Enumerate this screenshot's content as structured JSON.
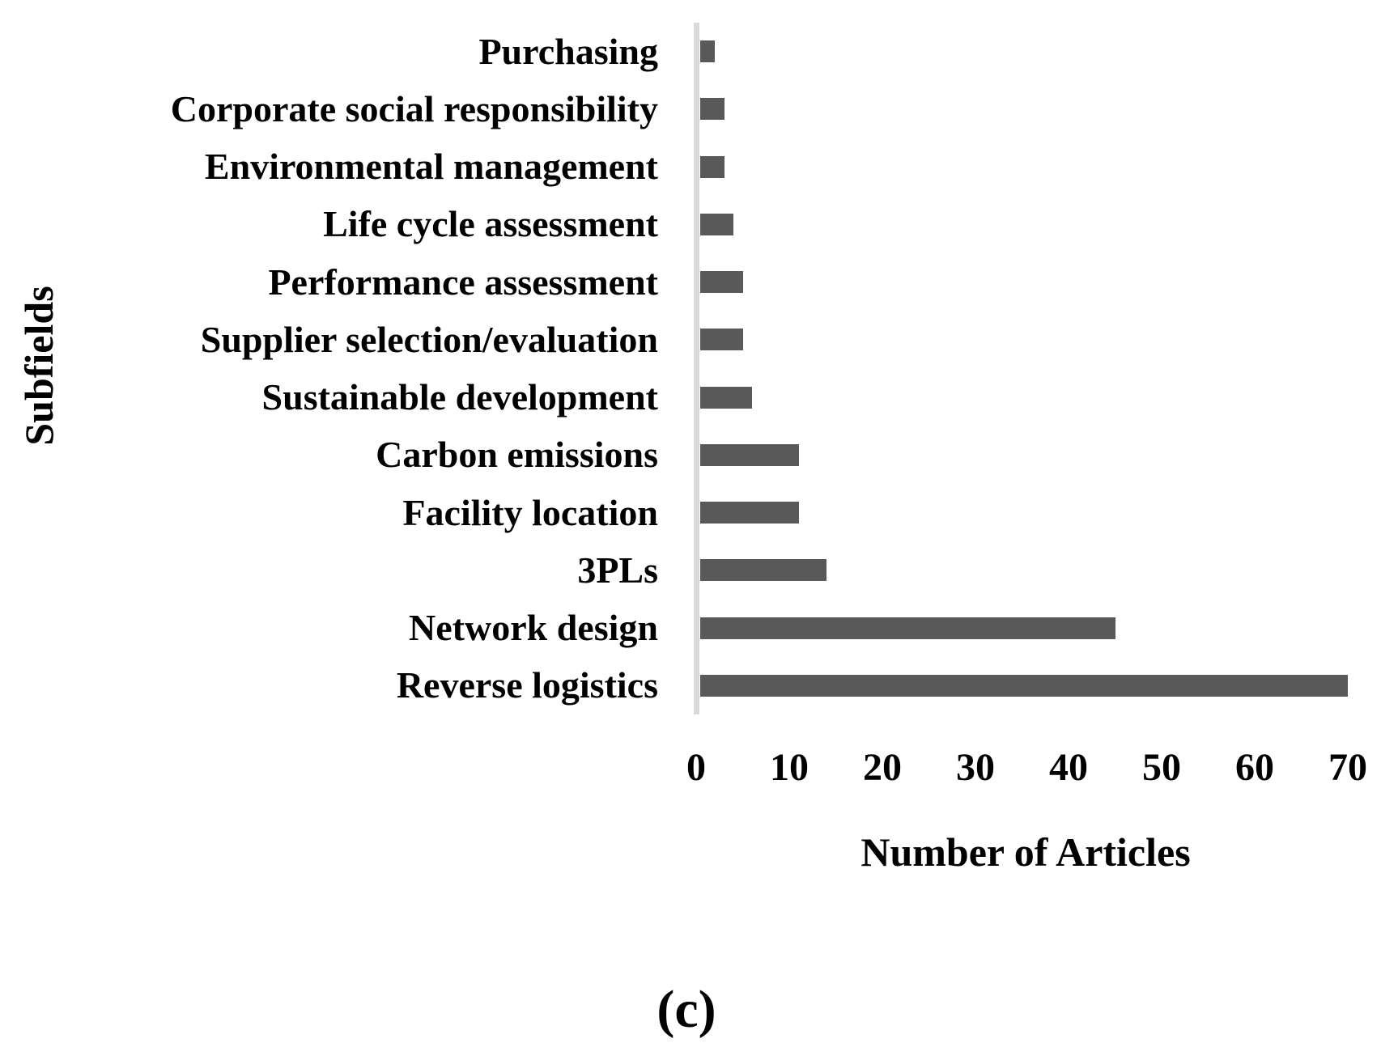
{
  "figure": {
    "caption": "(c)"
  },
  "chart_data": {
    "type": "bar",
    "orientation": "horizontal",
    "title": "",
    "xlabel": "Number of Articles",
    "ylabel": "Subfields",
    "categories": [
      "Purchasing",
      "Corporate social responsibility",
      "Environmental management",
      "Life cycle assessment",
      "Performance assessment",
      "Supplier selection/evaluation",
      "Sustainable development",
      "Carbon emissions",
      "Facility location",
      "3PLs",
      "Network design",
      "Reverse logistics"
    ],
    "values": [
      2,
      3,
      3,
      4,
      5,
      5,
      6,
      11,
      11,
      14,
      45,
      70
    ],
    "xlim": [
      0,
      70
    ],
    "xticks": [
      0,
      10,
      20,
      30,
      40,
      50,
      60,
      70
    ],
    "grid": false,
    "legend": "none",
    "bar_color": "#595959",
    "axis_line_color": "#D9D9D9",
    "text_color": "#000000"
  }
}
